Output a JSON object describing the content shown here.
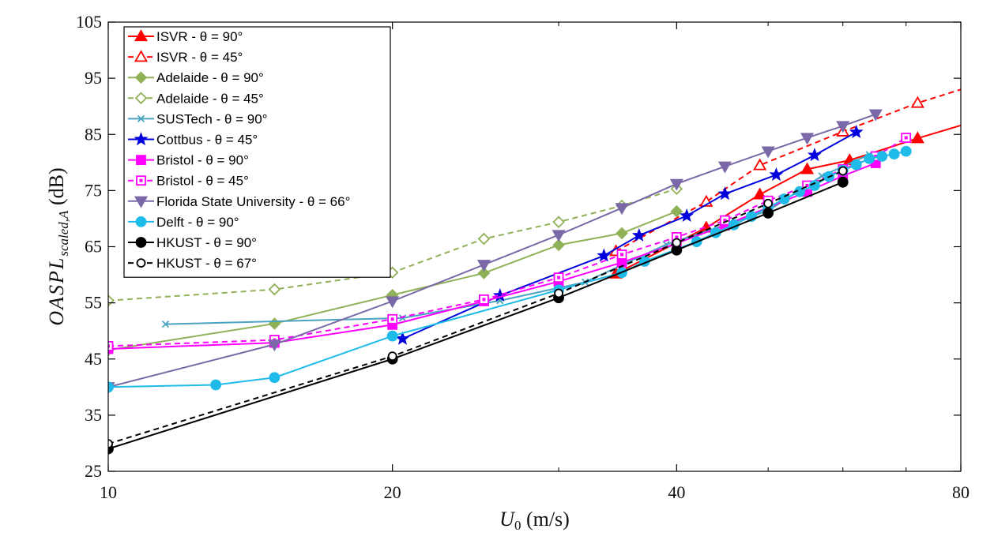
{
  "chart_data": {
    "type": "line",
    "x_scale": "log",
    "xlabel_main": "U",
    "xlabel_sub": "0",
    "xlabel_unit": "(m/s)",
    "ylabel_main": "OASPL",
    "ylabel_sub": "scaled,A",
    "ylabel_unit": "(dB)",
    "xlim": [
      10,
      80
    ],
    "ylim": [
      25,
      105
    ],
    "x_ticks": [
      10,
      20,
      40,
      80
    ],
    "y_ticks": [
      25,
      35,
      45,
      55,
      65,
      75,
      85,
      95,
      105
    ],
    "grid": false,
    "legend_position": "top-left",
    "series": [
      {
        "name": "ISVR - θ = 90°",
        "color": "#ff0000",
        "marker": "triangle-up",
        "filled": true,
        "dashed": false,
        "x": [
          34.5,
          43,
          49,
          55,
          61,
          72
        ],
        "y": [
          60.2,
          68.4,
          74.3,
          78.8,
          80.4,
          84.3
        ],
        "extend_to": [
          80,
          86.6
        ]
      },
      {
        "name": "ISVR - θ = 45°",
        "color": "#ff0000",
        "marker": "triangle-up",
        "filled": false,
        "dashed": true,
        "x": [
          34.5,
          43,
          49,
          60,
          72
        ],
        "y": [
          64.2,
          73,
          79.5,
          85.5,
          90.6
        ],
        "extend_to": [
          80,
          93
        ]
      },
      {
        "name": "Adelaide - θ = 90°",
        "color": "#8fb157",
        "marker": "diamond",
        "filled": true,
        "dashed": false,
        "x": [
          10,
          15,
          20,
          25,
          30,
          35,
          40
        ],
        "y": [
          46.6,
          51.3,
          56.4,
          60.3,
          65.3,
          67.4,
          71.3
        ]
      },
      {
        "name": "Adelaide - θ = 45°",
        "color": "#8fb157",
        "marker": "diamond",
        "filled": false,
        "dashed": true,
        "x": [
          10,
          15,
          20,
          25,
          30,
          35,
          40
        ],
        "y": [
          55.4,
          57.4,
          60.4,
          66.4,
          69.4,
          72.3,
          75.3
        ]
      },
      {
        "name": "SUSTech - θ = 90°",
        "color": "#4aa3c0",
        "marker": "x",
        "filled": false,
        "dashed": false,
        "x": [
          11.5,
          20.5,
          26,
          32,
          39,
          50,
          57,
          64
        ],
        "y": [
          51.2,
          52.3,
          55.4,
          58.7,
          65.4,
          71.4,
          77.6,
          81.4
        ]
      },
      {
        "name": "Cottbus - θ = 45°",
        "color": "#0000dd",
        "marker": "star",
        "filled": true,
        "dashed": false,
        "x": [
          20.5,
          26,
          33.5,
          36.5,
          41,
          45,
          51,
          56,
          62
        ],
        "y": [
          48.6,
          56.3,
          63.4,
          67,
          70.5,
          74.4,
          77.8,
          81.3,
          85.4
        ]
      },
      {
        "name": "Bristol - θ = 90°",
        "color": "#ff00ff",
        "marker": "square",
        "filled": true,
        "dashed": false,
        "x": [
          10,
          15,
          20,
          25,
          30,
          35,
          40,
          45,
          50,
          55,
          60,
          65
        ],
        "y": [
          46.8,
          47.9,
          51.1,
          55.3,
          58.8,
          62.2,
          65.6,
          68.8,
          72,
          74.8,
          77.6,
          79.9
        ]
      },
      {
        "name": "Bristol - θ = 45°",
        "color": "#ff00ff",
        "marker": "square-dot",
        "filled": false,
        "dashed": true,
        "x": [
          10,
          15,
          20,
          25,
          30,
          35,
          40,
          45,
          50,
          55,
          60,
          65,
          70
        ],
        "y": [
          47.3,
          48.4,
          52.1,
          55.6,
          59.5,
          63.6,
          66.7,
          69.7,
          73.2,
          75.9,
          78.8,
          81.1,
          84.4
        ]
      },
      {
        "name": "Florida State University - θ = 66°",
        "color": "#7b68a8",
        "marker": "triangle-down",
        "filled": true,
        "dashed": false,
        "x": [
          10,
          15,
          20,
          25,
          30,
          35,
          40,
          45,
          50,
          55,
          60,
          65
        ],
        "y": [
          40,
          47.6,
          55.3,
          61.8,
          67.1,
          71.9,
          76.2,
          79.3,
          82,
          84.4,
          86.5,
          88.6
        ]
      },
      {
        "name": "Delft - θ = 90°",
        "color": "#1ebbe9",
        "marker": "circle",
        "filled": true,
        "dashed": false,
        "x": [
          10,
          13,
          15,
          20,
          30,
          35,
          37,
          42,
          44,
          46,
          48,
          50,
          52,
          54,
          56,
          58,
          60,
          62,
          64,
          66,
          68,
          70
        ],
        "y": [
          40,
          40.4,
          41.7,
          49.1,
          57.3,
          60.4,
          62.4,
          65.9,
          67.5,
          68.9,
          70.4,
          72,
          73.5,
          74.8,
          75.9,
          77.5,
          78.6,
          79.6,
          80.7,
          81.1,
          81.5,
          82
        ]
      },
      {
        "name": "HKUST - θ = 90°",
        "color": "#000000",
        "marker": "circle",
        "filled": true,
        "dashed": false,
        "x": [
          10,
          20,
          30,
          40,
          50,
          60
        ],
        "y": [
          29,
          45,
          55.9,
          64.4,
          71,
          76.5
        ]
      },
      {
        "name": "HKUST - θ = 67°",
        "color": "#000000",
        "marker": "circle",
        "filled": false,
        "dashed": true,
        "x": [
          10,
          20,
          30,
          40,
          50,
          60
        ],
        "y": [
          29.9,
          45.5,
          56.7,
          65.7,
          72.7,
          78.5
        ]
      }
    ]
  }
}
